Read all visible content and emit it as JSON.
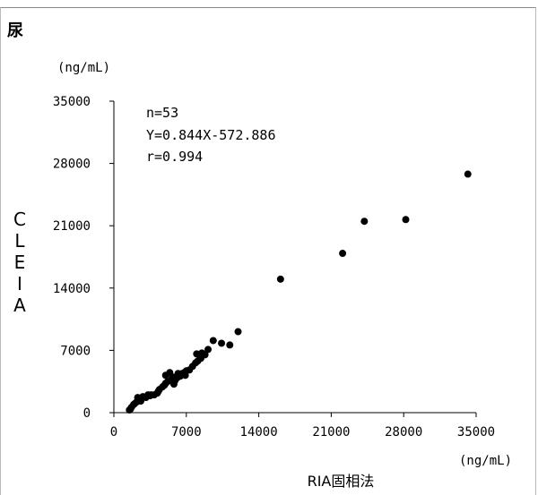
{
  "panel_label": "尿",
  "chart_data": {
    "type": "scatter",
    "title": "",
    "xlabel": "RIA固相法",
    "ylabel": "CLEIA",
    "x_unit": "(ng/mL)",
    "y_unit": "(ng/mL)",
    "xlim": [
      0,
      35000
    ],
    "ylim": [
      0,
      35000
    ],
    "x_ticks": [
      0,
      7000,
      14000,
      21000,
      28000,
      35000
    ],
    "y_ticks": [
      0,
      7000,
      14000,
      21000,
      28000,
      35000
    ],
    "x_tick_labels": [
      "0",
      "7000",
      "14000",
      "21000",
      "28000",
      "35000"
    ],
    "y_tick_labels": [
      "0",
      "7000",
      "14000",
      "21000",
      "28000",
      "35000"
    ],
    "annotations": [
      "n=53",
      "Y=0.844X-572.886",
      "r=0.994"
    ],
    "grid": false,
    "marker_color": "#000000",
    "points": [
      [
        1500,
        300
      ],
      [
        1700,
        600
      ],
      [
        1900,
        900
      ],
      [
        2200,
        1200
      ],
      [
        2500,
        1500
      ],
      [
        2800,
        1800
      ],
      [
        2300,
        1700
      ],
      [
        3100,
        1700
      ],
      [
        3300,
        2000
      ],
      [
        3600,
        2000
      ],
      [
        3900,
        2000
      ],
      [
        4200,
        2200
      ],
      [
        4400,
        2600
      ],
      [
        4700,
        2900
      ],
      [
        4900,
        3100
      ],
      [
        5000,
        3300
      ],
      [
        5200,
        3500
      ],
      [
        5000,
        4200
      ],
      [
        5400,
        4500
      ],
      [
        5600,
        3800
      ],
      [
        5700,
        4000
      ],
      [
        5900,
        3600
      ],
      [
        6100,
        3900
      ],
      [
        6200,
        4400
      ],
      [
        6400,
        4100
      ],
      [
        6600,
        4400
      ],
      [
        6800,
        4500
      ],
      [
        7000,
        4700
      ],
      [
        7300,
        4800
      ],
      [
        7900,
        5600
      ],
      [
        8100,
        5800
      ],
      [
        8400,
        6100
      ],
      [
        8000,
        6600
      ],
      [
        8500,
        6700
      ],
      [
        8800,
        6500
      ],
      [
        9100,
        7100
      ],
      [
        9600,
        8100
      ],
      [
        10400,
        7800
      ],
      [
        11200,
        7600
      ],
      [
        5800,
        3200
      ],
      [
        4300,
        2400
      ],
      [
        3500,
        1900
      ],
      [
        2000,
        1000
      ],
      [
        1600,
        400
      ],
      [
        2600,
        1300
      ],
      [
        6900,
        4200
      ],
      [
        7600,
        5200
      ],
      [
        16100,
        15000
      ],
      [
        22100,
        17900
      ],
      [
        24200,
        21500
      ],
      [
        28200,
        21700
      ],
      [
        34200,
        26800
      ],
      [
        12000,
        9100
      ]
    ]
  }
}
